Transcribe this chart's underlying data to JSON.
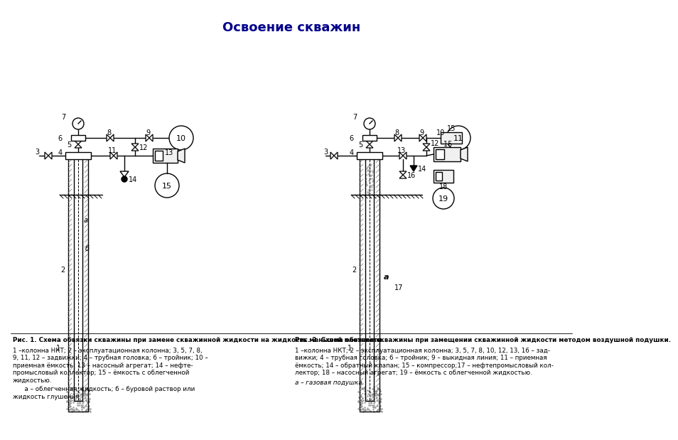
{
  "title": "Освоение скважин",
  "title_color": "#00008B",
  "title_fontsize": 13,
  "bg_color": "#ffffff",
  "fig1_caption_bold": "Рис. 1. Схема обвязки скважины при замене скважинной жидкости на жидкость меньшей плотности.",
  "fig1_caption_normal1": "1 –колонна НКТ; 2 – эксплуатационная колонна; 3, 5, 7, 8,",
  "fig1_caption_normal2": "9, 11, 12 – задвижки; 4 – трубная головка; 6 – тройник; 10 –",
  "fig1_caption_normal3": "приемная ёмкость; 13 – насосный агрегат; 14 – нефте-",
  "fig1_caption_normal4": "промысловый коллектор; 15 – ёмкость с облегченной",
  "fig1_caption_normal5": "жидкостью.",
  "fig1_caption_normal6": "      а – облегченная жидкость; б – буровой раствор или",
  "fig1_caption_normal7": "жидкость глушения.",
  "fig2_caption_bold": "Рис. 2. Схема обвязки скважины при замещении скважинной жидкости методом воздушной подушки.",
  "fig2_caption_normal1": "1 –колонна НКТ; 2 – эксплуатационная колонна; 3, 5, 7, 8, 10, 12, 13, 16 – зад-",
  "fig2_caption_normal2": "вижки; 4 – трубная головка; 6 – тройник; 9 – выкидная линия; 11 – приемная",
  "fig2_caption_normal3": "ёмкость; 14 – обратный клапан; 15 – компрессор;17 – нефтепромысловый кол-",
  "fig2_caption_normal4": "лектор; 18 – насосный агрегат; 19 – ёмкость с облегченной жидкостью.",
  "fig2_caption_normal5": "а – газовая подушка.",
  "line_color": "#000000",
  "text_color": "#000000"
}
